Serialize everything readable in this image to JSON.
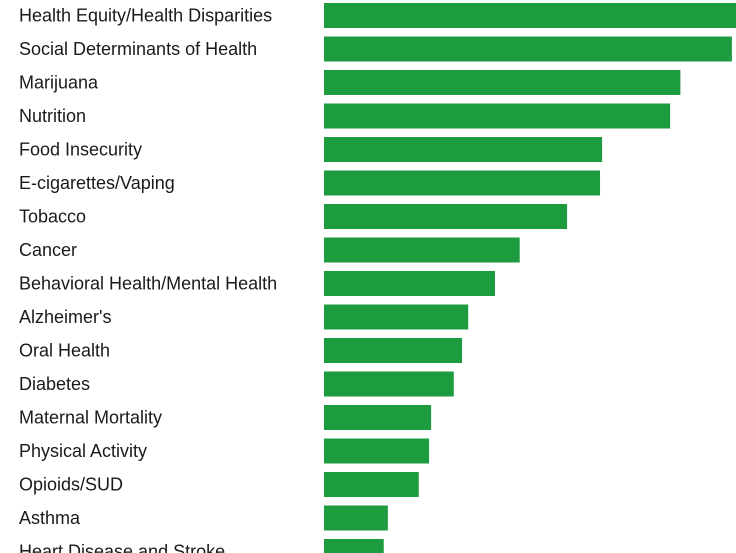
{
  "chart_data": {
    "type": "bar",
    "orientation": "horizontal",
    "title": "",
    "xlabel": "",
    "ylabel": "",
    "categories": [
      "Health Equity/Health Disparities",
      "Social Determinants of Health",
      "Marijuana",
      "Nutrition",
      "Food Insecurity",
      "E-cigarettes/Vaping",
      "Tobacco",
      "Cancer",
      "Behavioral Health/Mental Health",
      "Alzheimer's",
      "Oral Health",
      "Diabetes",
      "Maternal Mortality",
      "Physical Activity",
      "Opioids/SUD",
      "Asthma",
      "Heart Disease and Stroke"
    ],
    "values": [
      100,
      99,
      86.5,
      84,
      67.5,
      67,
      59,
      47.5,
      41.5,
      35,
      33.5,
      31.5,
      26,
      25.5,
      23,
      15.5,
      14.5
    ],
    "xlim": [
      0,
      100
    ],
    "bar_color": "#1c9b3f",
    "grid": false,
    "axis_visible": false
  }
}
